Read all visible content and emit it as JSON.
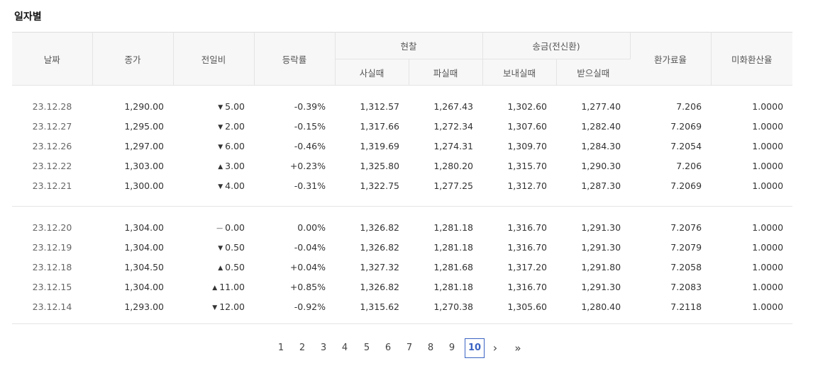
{
  "title": "일자별",
  "headers": {
    "date": "날짜",
    "close": "종가",
    "change": "전일비",
    "rate": "등락률",
    "cash": "현찰",
    "cash_buy": "사실때",
    "cash_sell": "파실때",
    "transfer": "송금(전신환)",
    "send": "보내실때",
    "receive": "받으실때",
    "conversion": "환가료율",
    "usd_rate": "미화환산율"
  },
  "groups": [
    [
      {
        "date": "23.12.28",
        "close": "1,290.00",
        "dir": "down",
        "change": "5.00",
        "rate": "-0.39%",
        "cash_buy": "1,312.57",
        "cash_sell": "1,267.43",
        "send": "1,302.60",
        "receive": "1,277.40",
        "conversion": "7.206",
        "usd": "1.0000"
      },
      {
        "date": "23.12.27",
        "close": "1,295.00",
        "dir": "down",
        "change": "2.00",
        "rate": "-0.15%",
        "cash_buy": "1,317.66",
        "cash_sell": "1,272.34",
        "send": "1,307.60",
        "receive": "1,282.40",
        "conversion": "7.2069",
        "usd": "1.0000"
      },
      {
        "date": "23.12.26",
        "close": "1,297.00",
        "dir": "down",
        "change": "6.00",
        "rate": "-0.46%",
        "cash_buy": "1,319.69",
        "cash_sell": "1,274.31",
        "send": "1,309.70",
        "receive": "1,284.30",
        "conversion": "7.2054",
        "usd": "1.0000"
      },
      {
        "date": "23.12.22",
        "close": "1,303.00",
        "dir": "up",
        "change": "3.00",
        "rate": "+0.23%",
        "cash_buy": "1,325.80",
        "cash_sell": "1,280.20",
        "send": "1,315.70",
        "receive": "1,290.30",
        "conversion": "7.206",
        "usd": "1.0000"
      },
      {
        "date": "23.12.21",
        "close": "1,300.00",
        "dir": "down",
        "change": "4.00",
        "rate": "-0.31%",
        "cash_buy": "1,322.75",
        "cash_sell": "1,277.25",
        "send": "1,312.70",
        "receive": "1,287.30",
        "conversion": "7.2069",
        "usd": "1.0000"
      }
    ],
    [
      {
        "date": "23.12.20",
        "close": "1,304.00",
        "dir": "flat",
        "change": "0.00",
        "rate": "0.00%",
        "cash_buy": "1,326.82",
        "cash_sell": "1,281.18",
        "send": "1,316.70",
        "receive": "1,291.30",
        "conversion": "7.2076",
        "usd": "1.0000"
      },
      {
        "date": "23.12.19",
        "close": "1,304.00",
        "dir": "down",
        "change": "0.50",
        "rate": "-0.04%",
        "cash_buy": "1,326.82",
        "cash_sell": "1,281.18",
        "send": "1,316.70",
        "receive": "1,291.30",
        "conversion": "7.2079",
        "usd": "1.0000"
      },
      {
        "date": "23.12.18",
        "close": "1,304.50",
        "dir": "up",
        "change": "0.50",
        "rate": "+0.04%",
        "cash_buy": "1,327.32",
        "cash_sell": "1,281.68",
        "send": "1,317.20",
        "receive": "1,291.80",
        "conversion": "7.2058",
        "usd": "1.0000"
      },
      {
        "date": "23.12.15",
        "close": "1,304.00",
        "dir": "up",
        "change": "11.00",
        "rate": "+0.85%",
        "cash_buy": "1,326.82",
        "cash_sell": "1,281.18",
        "send": "1,316.70",
        "receive": "1,291.30",
        "conversion": "7.2083",
        "usd": "1.0000"
      },
      {
        "date": "23.12.14",
        "close": "1,293.00",
        "dir": "down",
        "change": "12.00",
        "rate": "-0.92%",
        "cash_buy": "1,315.62",
        "cash_sell": "1,270.38",
        "send": "1,305.60",
        "receive": "1,280.40",
        "conversion": "7.2118",
        "usd": "1.0000"
      }
    ]
  ],
  "direction_icons": {
    "up": "triangle-up-icon",
    "down": "triangle-down-icon",
    "flat": "dash-icon"
  },
  "colors": {
    "up": "#d9272b",
    "down": "#3a63c3",
    "accent": "#3a63c3"
  },
  "pagination": {
    "pages": [
      "1",
      "2",
      "3",
      "4",
      "5",
      "6",
      "7",
      "8",
      "9",
      "10"
    ],
    "current": "10",
    "next": "›",
    "last": "»"
  }
}
